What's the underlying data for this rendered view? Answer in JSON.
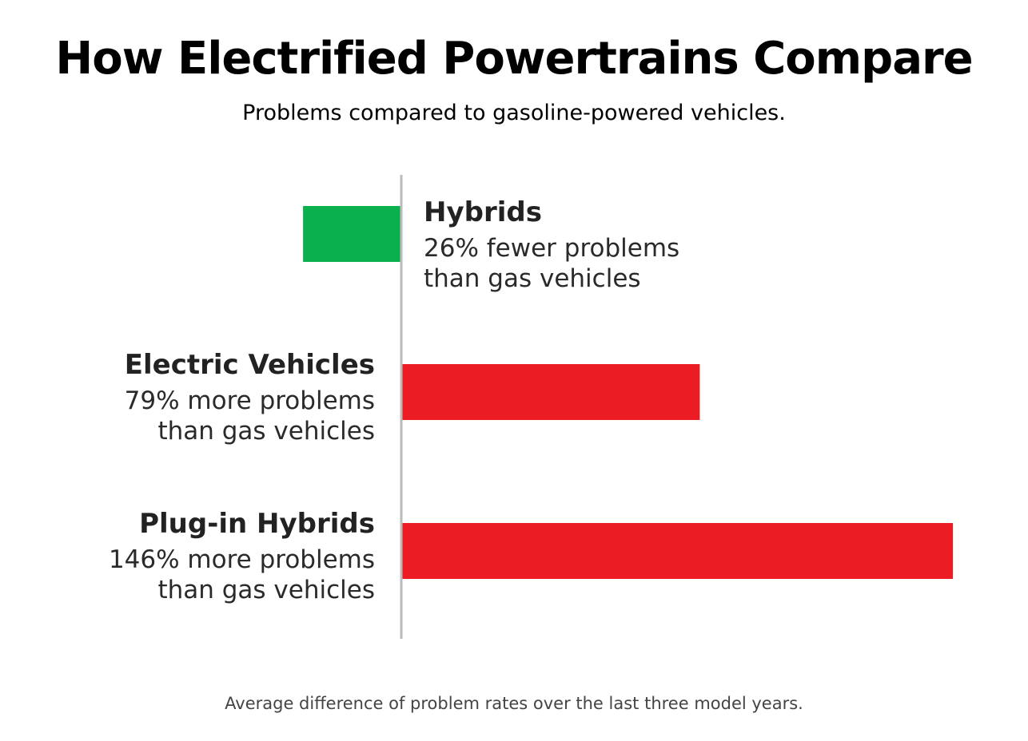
{
  "chart_data": {
    "type": "bar",
    "orientation": "horizontal",
    "title": "How Electrified Powertrains Compare",
    "subtitle": "Problems compared to gasoline-powered vehicles.",
    "footnote": "Average difference of problem rates over the last three model years.",
    "baseline_label": "gas vehicles",
    "unit": "%",
    "categories": [
      "Hybrids",
      "Electric Vehicles",
      "Plug-in Hybrids"
    ],
    "values": [
      -26,
      79,
      146
    ],
    "labels": [
      {
        "name": "Hybrids",
        "line1": "26% fewer problems",
        "line2": "than gas vehicles"
      },
      {
        "name": "Electric Vehicles",
        "line1": "79% more problems",
        "line2": "than gas vehicles"
      },
      {
        "name": "Plug-in Hybrids",
        "line1": "146% more problems",
        "line2": "than gas vehicles"
      }
    ],
    "colors": {
      "fewer": "#0aaf4e",
      "more": "#ec1c24",
      "axis": "#bbbbbb"
    },
    "xlim": [
      -26,
      146
    ],
    "grid": false,
    "legend": "none"
  }
}
